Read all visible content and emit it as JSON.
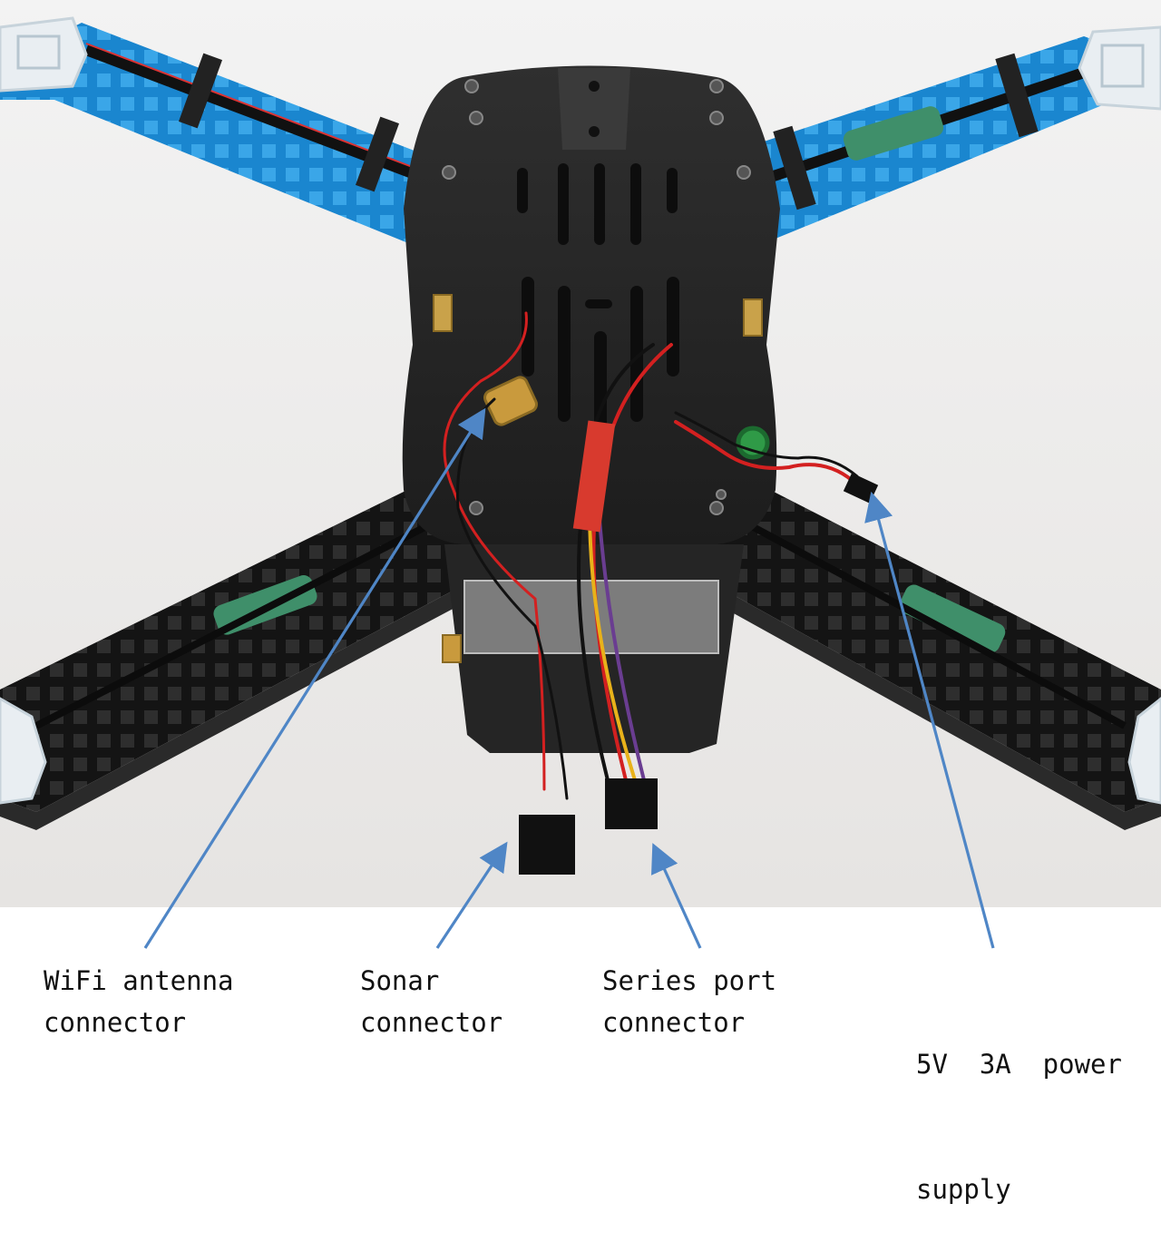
{
  "annotations": [
    {
      "id": "wifi",
      "line1": "WiFi antenna",
      "line2": "connector"
    },
    {
      "id": "sonar",
      "line1": "Sonar",
      "line2": "connector"
    },
    {
      "id": "serial",
      "line1": "Series port",
      "line2": "connector"
    },
    {
      "id": "power",
      "line1": "5V  3A  power",
      "line2": "supply"
    }
  ],
  "colors": {
    "arrow": "#4f86c6",
    "arm_blue": "#1e8fd6",
    "frame_black": "#262626",
    "wire_red": "#d32020",
    "heat_shrink_green": "#3f8f6a"
  }
}
